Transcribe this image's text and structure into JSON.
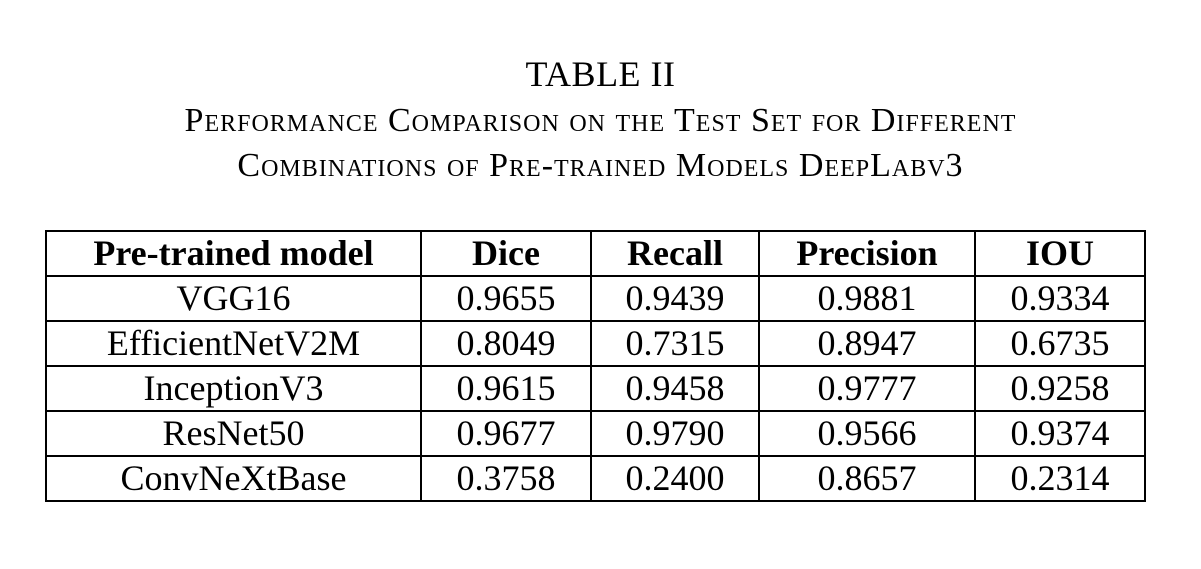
{
  "caption": {
    "table_label": "TABLE II",
    "title_line_1": "Performance Comparison on the Test Set for Different",
    "title_line_2": "Combinations of Pre-trained Models DeepLabv3"
  },
  "table": {
    "headers": [
      "Pre-trained model",
      "Dice",
      "Recall",
      "Precision",
      "IOU"
    ],
    "rows": [
      [
        "VGG16",
        "0.9655",
        "0.9439",
        "0.9881",
        "0.9334"
      ],
      [
        "EfficientNetV2M",
        "0.8049",
        "0.7315",
        "0.8947",
        "0.6735"
      ],
      [
        "InceptionV3",
        "0.9615",
        "0.9458",
        "0.9777",
        "0.9258"
      ],
      [
        "ResNet50",
        "0.9677",
        "0.9790",
        "0.9566",
        "0.9374"
      ],
      [
        "ConvNeXtBase",
        "0.3758",
        "0.2400",
        "0.8657",
        "0.2314"
      ]
    ]
  }
}
